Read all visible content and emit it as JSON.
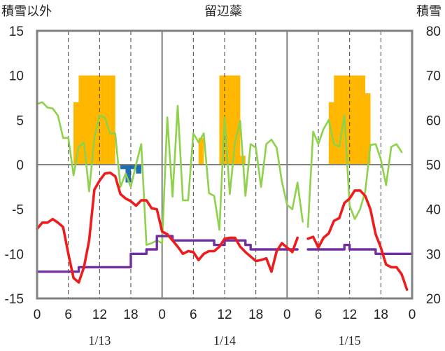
{
  "chart_data": {
    "type": "line",
    "title": "留辺蘂",
    "y_left_label": "積雪以外",
    "y_right_label": "積雪",
    "y_left_range": [
      -15,
      15
    ],
    "y_left_ticks": [
      15,
      10,
      5,
      0,
      -5,
      -10,
      -15
    ],
    "y_right_range": [
      20,
      80
    ],
    "y_right_ticks": [
      80,
      70,
      60,
      50,
      40,
      30,
      20
    ],
    "x_range_hours": [
      0,
      72
    ],
    "x_tick_hours": [
      0,
      6,
      12,
      18,
      24,
      30,
      36,
      42,
      48,
      54,
      60,
      66,
      72
    ],
    "x_tick_labels": [
      "0",
      "6",
      "12",
      "18",
      "0",
      "6",
      "12",
      "18",
      "0",
      "6",
      "12",
      "18",
      "0"
    ],
    "date_labels": [
      {
        "label": "1/13",
        "hour": 12
      },
      {
        "label": "1/14",
        "hour": 36
      },
      {
        "label": "1/15",
        "hour": 60
      }
    ],
    "colors": {
      "precip_bar": "#FFB700",
      "negative_bar": "#1F6FB5",
      "temperature": "#EE1C1C",
      "wind": "#8ED14B",
      "snow_depth": "#7030A0",
      "axes": "#808080",
      "grid_dash": "#444444"
    },
    "series": [
      {
        "key": "precip",
        "kind": "bar",
        "axis": "left",
        "bars": [
          {
            "h": 7.5,
            "v": 7
          },
          {
            "h": 8.5,
            "v": 10
          },
          {
            "h": 9.5,
            "v": 10
          },
          {
            "h": 10.5,
            "v": 10
          },
          {
            "h": 11.5,
            "v": 10
          },
          {
            "h": 12.5,
            "v": 10
          },
          {
            "h": 13.5,
            "v": 10
          },
          {
            "h": 14.5,
            "v": 10
          },
          {
            "h": 31.5,
            "v": 3
          },
          {
            "h": 35.5,
            "v": 10
          },
          {
            "h": 36.5,
            "v": 10
          },
          {
            "h": 37.5,
            "v": 10
          },
          {
            "h": 38.5,
            "v": 10
          },
          {
            "h": 39.5,
            "v": 1
          },
          {
            "h": 56.5,
            "v": 7
          },
          {
            "h": 57.5,
            "v": 10
          },
          {
            "h": 58.5,
            "v": 10
          },
          {
            "h": 59.5,
            "v": 10
          },
          {
            "h": 60.5,
            "v": 10
          },
          {
            "h": 61.5,
            "v": 10
          },
          {
            "h": 62.5,
            "v": 10
          },
          {
            "h": 63.5,
            "v": 8
          }
        ]
      },
      {
        "key": "precip_negative",
        "kind": "bar",
        "axis": "left",
        "bars": [
          {
            "h": 16.5,
            "v": -0.5
          },
          {
            "h": 17.5,
            "v": -2.0
          },
          {
            "h": 18.5,
            "v": -0.5
          },
          {
            "h": 19.5,
            "v": -1.0
          }
        ]
      },
      {
        "key": "wind",
        "kind": "line",
        "axis": "left",
        "segments": [
          [
            [
              0,
              6.8
            ],
            [
              1,
              7
            ],
            [
              2,
              6.4
            ],
            [
              3,
              6.3
            ],
            [
              4,
              5.5
            ],
            [
              5,
              3
            ],
            [
              6,
              3
            ],
            [
              7,
              -1.2
            ],
            [
              8,
              2
            ],
            [
              9,
              2.5
            ],
            [
              10,
              -3
            ],
            [
              11,
              3
            ],
            [
              12,
              5.5
            ],
            [
              13,
              5.3
            ],
            [
              14,
              3.5
            ],
            [
              15,
              3.5
            ],
            [
              16,
              -2.5
            ],
            [
              17,
              -1
            ],
            [
              18,
              -2.5
            ],
            [
              19,
              0
            ],
            [
              20,
              2.3
            ],
            [
              21,
              -9
            ],
            [
              22,
              -8.8
            ],
            [
              23,
              -8.5
            ],
            [
              24,
              -8.8
            ],
            [
              25,
              5.3
            ],
            [
              26,
              -3.6
            ],
            [
              27,
              6.6
            ],
            [
              28,
              -4
            ],
            [
              29,
              -4
            ],
            [
              30,
              3.5
            ],
            [
              31,
              2.5
            ],
            [
              32,
              3.5
            ],
            [
              33,
              -3.2
            ],
            [
              34,
              -3.5
            ],
            [
              35,
              -7.3
            ],
            [
              36,
              5.3
            ],
            [
              37,
              -3.3
            ],
            [
              38,
              2.5
            ],
            [
              39,
              4.9
            ],
            [
              40,
              -3.5
            ],
            [
              41,
              2.3
            ],
            [
              42,
              1.9
            ],
            [
              43,
              -2.5
            ],
            [
              44,
              2.3
            ],
            [
              45,
              2.8
            ],
            [
              46,
              1.9
            ],
            [
              47,
              -1.9
            ],
            [
              48,
              -4.5
            ],
            [
              49,
              -5
            ],
            [
              50,
              -2
            ],
            [
              51,
              -6.4
            ]
          ],
          [
            [
              52,
              -7
            ],
            [
              53,
              3.7
            ],
            [
              54,
              2.3
            ],
            [
              55,
              4
            ],
            [
              56,
              5
            ],
            [
              57,
              2.3
            ],
            [
              58,
              2
            ],
            [
              59,
              5.5
            ],
            [
              60,
              -4.6
            ],
            [
              61,
              -6.1
            ],
            [
              62,
              -5
            ],
            [
              63,
              -3
            ],
            [
              64,
              2.2
            ],
            [
              65,
              2.3
            ],
            [
              66,
              0.6
            ],
            [
              67,
              -2.3
            ],
            [
              68,
              2
            ],
            [
              69,
              2.3
            ],
            [
              70,
              1.4
            ]
          ]
        ]
      },
      {
        "key": "temperature",
        "kind": "line",
        "axis": "left",
        "segments": [
          [
            [
              0,
              -7.2
            ],
            [
              1,
              -6.5
            ],
            [
              2,
              -6.5
            ],
            [
              3,
              -6.1
            ],
            [
              4,
              -6.5
            ],
            [
              5,
              -7
            ],
            [
              6,
              -10
            ],
            [
              7,
              -12.7
            ],
            [
              8,
              -13.2
            ],
            [
              9,
              -11.5
            ],
            [
              10,
              -8.5
            ],
            [
              11,
              -2.8
            ],
            [
              12,
              -1.8
            ],
            [
              13,
              -1
            ],
            [
              14,
              -0.9
            ],
            [
              15,
              -1.3
            ],
            [
              16,
              -3.3
            ],
            [
              17,
              -3.8
            ],
            [
              18,
              -4.1
            ],
            [
              19,
              -4.6
            ],
            [
              20,
              -4
            ],
            [
              21,
              -4
            ],
            [
              22,
              -4.9
            ],
            [
              23,
              -5
            ],
            [
              24,
              -7.5
            ],
            [
              25,
              -7.8
            ],
            [
              26,
              -8.5
            ],
            [
              27,
              -9.2
            ],
            [
              28,
              -10
            ],
            [
              29,
              -9.7
            ],
            [
              30,
              -9.8
            ],
            [
              31,
              -10.7
            ],
            [
              32,
              -10
            ],
            [
              33,
              -9.7
            ],
            [
              34,
              -9.7
            ],
            [
              35,
              -9.2
            ],
            [
              36,
              -8.3
            ],
            [
              37,
              -8.2
            ],
            [
              38,
              -8.2
            ],
            [
              39,
              -9.2
            ],
            [
              40,
              -9.8
            ],
            [
              41,
              -10.3
            ],
            [
              42,
              -10.8
            ],
            [
              43,
              -10.7
            ],
            [
              44,
              -10.5
            ],
            [
              45,
              -12
            ],
            [
              46,
              -9.7
            ],
            [
              47,
              -8.8
            ],
            [
              48,
              -9.3
            ],
            [
              49,
              -9.8
            ],
            [
              50,
              -8.2
            ]
          ],
          [
            [
              52,
              -8.3
            ],
            [
              53,
              -8.1
            ],
            [
              54,
              -9.3
            ],
            [
              55,
              -8.2
            ],
            [
              56,
              -7.7
            ],
            [
              57,
              -6.3
            ],
            [
              58,
              -6
            ],
            [
              59,
              -4.3
            ],
            [
              60,
              -3.8
            ],
            [
              61,
              -2.9
            ],
            [
              62,
              -2.9
            ],
            [
              63,
              -3.5
            ],
            [
              64,
              -5
            ],
            [
              65,
              -7.8
            ],
            [
              66,
              -9.3
            ],
            [
              67,
              -11.2
            ],
            [
              68,
              -11.5
            ],
            [
              69,
              -11.5
            ],
            [
              70,
              -12.3
            ],
            [
              71,
              -14
            ]
          ]
        ]
      },
      {
        "key": "snow_depth",
        "kind": "step",
        "axis": "right",
        "segments": [
          [
            [
              0,
              26
            ],
            [
              7,
              26
            ],
            [
              8,
              27
            ],
            [
              9,
              27
            ],
            [
              10,
              27
            ],
            [
              11,
              27
            ],
            [
              12,
              27
            ],
            [
              13,
              27
            ],
            [
              14,
              27
            ],
            [
              15,
              27
            ],
            [
              16,
              27
            ],
            [
              17,
              27
            ],
            [
              18,
              30
            ],
            [
              19,
              30
            ],
            [
              20,
              30
            ],
            [
              21,
              31
            ],
            [
              22,
              31
            ],
            [
              23,
              34
            ],
            [
              24,
              34
            ],
            [
              25,
              34
            ],
            [
              26,
              33
            ],
            [
              27,
              33
            ],
            [
              28,
              33
            ],
            [
              29,
              33
            ],
            [
              30,
              33
            ],
            [
              31,
              33
            ],
            [
              32,
              33
            ],
            [
              33,
              33
            ],
            [
              34,
              32
            ],
            [
              35,
              32
            ],
            [
              36,
              33
            ],
            [
              37,
              33
            ],
            [
              38,
              33
            ],
            [
              39,
              33
            ],
            [
              40,
              32
            ],
            [
              41,
              31
            ],
            [
              42,
              31
            ],
            [
              43,
              31
            ],
            [
              44,
              31
            ],
            [
              45,
              31
            ],
            [
              46,
              31
            ],
            [
              47,
              31
            ],
            [
              48,
              31
            ],
            [
              49,
              31
            ],
            [
              50,
              31
            ]
          ],
          [
            [
              52,
              31
            ],
            [
              53,
              31
            ],
            [
              54,
              31
            ],
            [
              55,
              31
            ],
            [
              56,
              31
            ],
            [
              57,
              31
            ],
            [
              58,
              31
            ],
            [
              59,
              32
            ],
            [
              60,
              31
            ],
            [
              61,
              31
            ],
            [
              62,
              31
            ],
            [
              63,
              31
            ],
            [
              64,
              31
            ],
            [
              65,
              30
            ],
            [
              66,
              30
            ],
            [
              67,
              30
            ],
            [
              68,
              30
            ],
            [
              69,
              30
            ],
            [
              70,
              30
            ],
            [
              71,
              30
            ],
            [
              72,
              30
            ]
          ]
        ]
      }
    ]
  }
}
